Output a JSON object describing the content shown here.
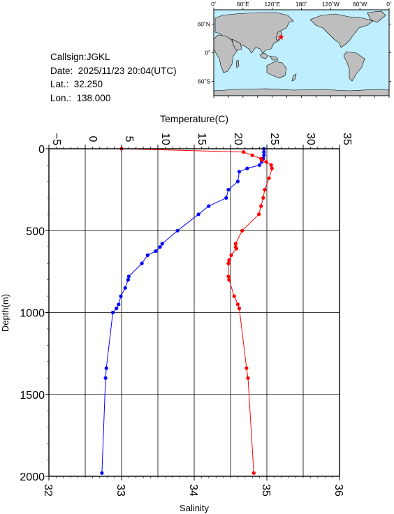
{
  "station": {
    "callsign_line": "Callsign:JGKL",
    "date_line": "Date:  2025/11/23 20:04(UTC)",
    "lat_line": "Lat.:  32.250",
    "lon_line": "Lon.:  138.000"
  },
  "map": {
    "lon_ticks": [
      "0˚",
      "60˚E",
      "120˚E",
      "180˚",
      "120˚W",
      "60˚W",
      "0˚"
    ],
    "lat_ticks": [
      "60˚N",
      "0˚",
      "60˚S"
    ],
    "marker": {
      "lon": 138.0,
      "lat": 32.25
    },
    "ocean_color": "#bfefff",
    "land_color": "#bebebe",
    "marker_color": "#ff0000"
  },
  "chart_data": {
    "type": "line",
    "xlabel_top": "Temperature(C)",
    "xlabel_bottom": "Salinity",
    "ylabel": "Depth(m)",
    "temp_ticks": [
      "−5",
      "0",
      "5",
      "10",
      "15",
      "20",
      "25",
      "30",
      "35"
    ],
    "sal_ticks": [
      "32",
      "33",
      "34",
      "35",
      "36"
    ],
    "depth_ticks": [
      "0",
      "500",
      "1000",
      "1500",
      "2000"
    ],
    "temp_range": [
      -5,
      35
    ],
    "sal_range": [
      32,
      36
    ],
    "depth_range": [
      0,
      2000
    ],
    "grid": true,
    "series": [
      {
        "color": "#0000ff",
        "axis": "temperature",
        "depth": [
          0,
          20,
          40,
          60,
          80,
          100,
          120,
          140,
          200,
          250,
          300,
          350,
          400,
          500,
          580,
          600,
          625,
          650,
          700,
          780,
          800,
          850,
          900,
          950,
          975,
          1000,
          1340,
          1400,
          1980
        ],
        "values": [
          24.6,
          24.6,
          24.6,
          24.5,
          24.3,
          24.0,
          22.3,
          21.2,
          21.0,
          19.7,
          19.4,
          17.0,
          15.6,
          12.7,
          10.6,
          10.3,
          9.7,
          8.6,
          7.8,
          6.0,
          5.9,
          5.5,
          4.9,
          4.6,
          4.3,
          3.8,
          2.9,
          2.8,
          2.3
        ]
      },
      {
        "color": "#ff0000",
        "axis": "salinity",
        "depth": [
          0,
          20,
          40,
          60,
          70,
          80,
          100,
          120,
          180,
          250,
          300,
          350,
          400,
          500,
          580,
          600,
          610,
          650,
          680,
          700,
          780,
          800,
          900,
          950,
          975,
          1340,
          1400,
          1980
        ],
        "values": [
          33.0,
          34.68,
          34.8,
          34.92,
          34.93,
          34.99,
          35.06,
          35.07,
          35.03,
          34.97,
          34.95,
          34.92,
          34.89,
          34.66,
          34.57,
          34.57,
          34.58,
          34.51,
          34.48,
          34.47,
          34.47,
          34.48,
          34.55,
          34.6,
          34.62,
          34.72,
          34.74,
          34.82
        ]
      }
    ]
  }
}
